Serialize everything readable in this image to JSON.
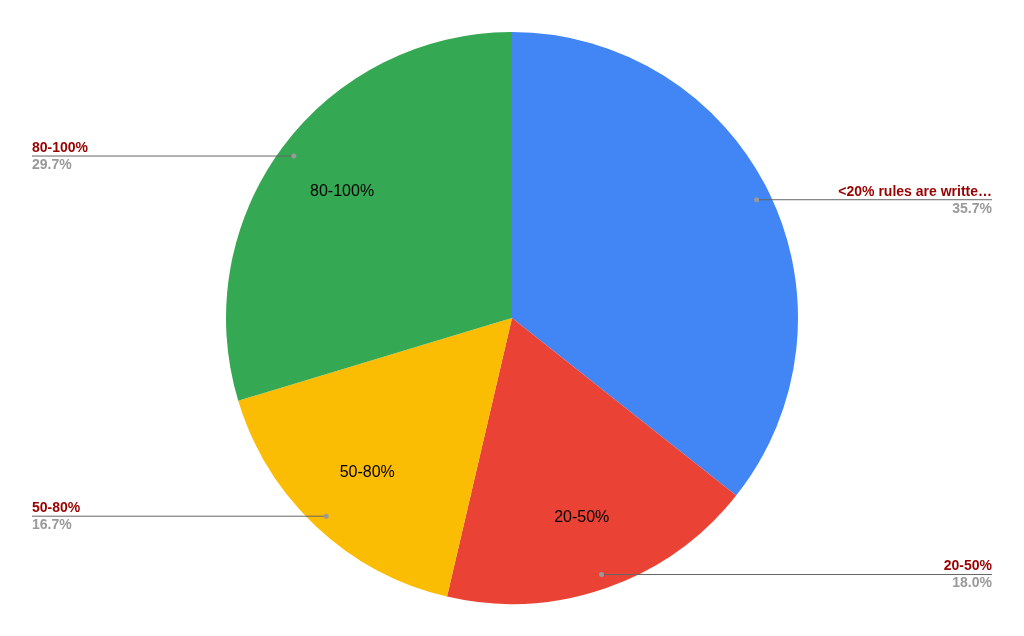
{
  "chart_data": {
    "type": "pie",
    "categories": [
      "<20% rules are writte…",
      "20-50%",
      "50-80%",
      "80-100%"
    ],
    "values": [
      35.7,
      18.0,
      16.7,
      29.7
    ],
    "colors": [
      "#4285f4",
      "#ea4335",
      "#fbbc04",
      "#34a853"
    ],
    "value_labels": [
      "35.7%",
      "18.0%",
      "16.7%",
      "29.7%"
    ],
    "legend": false
  }
}
